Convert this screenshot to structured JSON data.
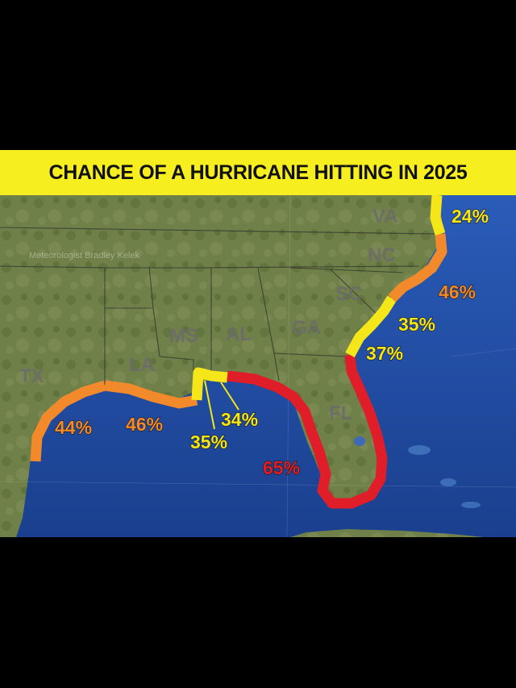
{
  "title": "CHANCE OF A HURRICANE HITTING IN 2025",
  "watermark": "Meteorologist Bradley Kelek",
  "colors": {
    "banner": "#f7ee1f",
    "ocean": "#1f4fa8",
    "land": "#6f8048",
    "low": "#f4e619",
    "medium": "#f28a2c",
    "high": "#e01e2a"
  },
  "state_labels": [
    "TX",
    "LA",
    "MS",
    "AL",
    "GA",
    "SC",
    "NC",
    "VA",
    "FL"
  ],
  "coast_segments": [
    {
      "region": "texas-coast",
      "percent": "44%",
      "level": "medium"
    },
    {
      "region": "louisiana-coast",
      "percent": "46%",
      "level": "medium"
    },
    {
      "region": "mississippi-coast",
      "percent": "35%",
      "level": "low"
    },
    {
      "region": "alabama-coast",
      "percent": "34%",
      "level": "low"
    },
    {
      "region": "florida-gulf-coast",
      "percent": "65%",
      "level": "high"
    },
    {
      "region": "florida-atlantic-coast",
      "percent": "37%",
      "level": "high"
    },
    {
      "region": "georgia-sc-coast",
      "percent": "35%",
      "level": "low"
    },
    {
      "region": "north-carolina-coast",
      "percent": "46%",
      "level": "medium"
    },
    {
      "region": "virginia-coast",
      "percent": "24%",
      "level": "low"
    }
  ]
}
